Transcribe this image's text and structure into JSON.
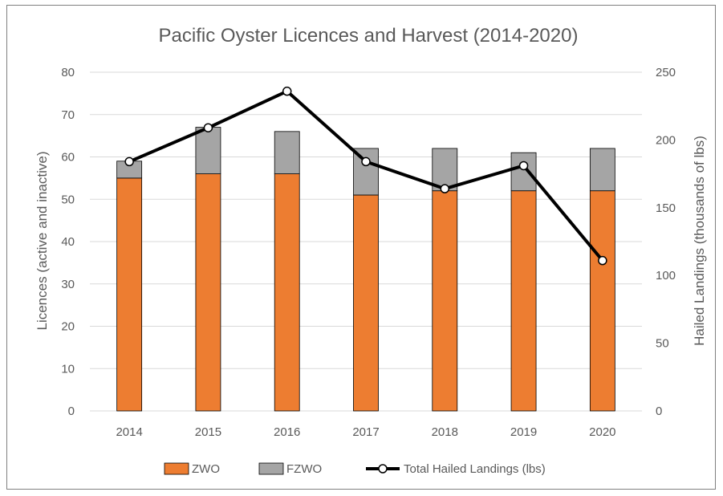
{
  "chart_data": {
    "type": "bar",
    "title": "Pacific Oyster Licences and Harvest (2014-2020)",
    "categories": [
      "2014",
      "2015",
      "2016",
      "2017",
      "2018",
      "2019",
      "2020"
    ],
    "ylabel": "Licences (active and inactive)",
    "y2label": "Hailed Landings (thousands of lbs)",
    "ylim": [
      0,
      80
    ],
    "y2lim": [
      0,
      250
    ],
    "yticks": [
      "0",
      "10",
      "20",
      "30",
      "40",
      "50",
      "60",
      "70",
      "80"
    ],
    "y2ticks": [
      "0",
      "50",
      "100",
      "150",
      "200",
      "250"
    ],
    "stacked": true,
    "grid": true,
    "legend_position": "bottom",
    "series": [
      {
        "name": "ZWO",
        "type": "bar",
        "axis": "left",
        "color": "#ed7d31",
        "values": [
          55,
          56,
          56,
          51,
          52,
          52,
          52
        ]
      },
      {
        "name": "FZWO",
        "type": "bar",
        "axis": "left",
        "color": "#a5a5a5",
        "values": [
          4,
          11,
          10,
          11,
          10,
          9,
          10
        ]
      },
      {
        "name": "Total Hailed Landings (lbs)",
        "type": "line",
        "axis": "right",
        "color": "#000000",
        "values": [
          184,
          209,
          236,
          184,
          164,
          181,
          111
        ]
      }
    ]
  }
}
